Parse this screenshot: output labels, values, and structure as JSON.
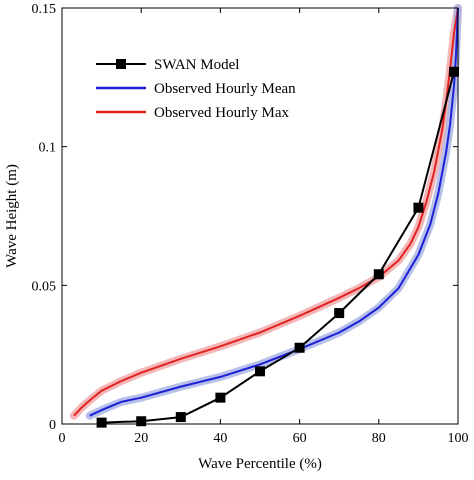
{
  "chart_data": {
    "type": "line",
    "title": "",
    "xlabel": "Wave Percentile (%)",
    "ylabel": "Wave Height (m)",
    "xlim": [
      0,
      100
    ],
    "ylim": [
      0,
      0.15
    ],
    "x_ticks": [
      0,
      20,
      40,
      60,
      80,
      100
    ],
    "y_ticks": [
      0,
      0.05,
      0.1,
      0.15
    ],
    "x_tick_labels": [
      "0",
      "20",
      "40",
      "60",
      "80",
      "100"
    ],
    "y_tick_labels": [
      "0",
      "0.05",
      "0.1",
      "0.15"
    ],
    "grid": false,
    "legend_position": "upper-left",
    "series": [
      {
        "name": "SWAN Model",
        "color": "#000000",
        "marker": "square",
        "x": [
          10,
          20,
          30,
          40,
          50,
          60,
          70,
          80,
          90,
          99
        ],
        "y": [
          0.0005,
          0.001,
          0.0025,
          0.0095,
          0.019,
          0.0275,
          0.04,
          0.054,
          0.078,
          0.127
        ]
      },
      {
        "name": "Observed Hourly Mean",
        "color": "#1f1fd6",
        "band_color": "#a9b5e8",
        "x": [
          7,
          10,
          15,
          20,
          30,
          40,
          50,
          60,
          70,
          75,
          80,
          85,
          90,
          93,
          95,
          97,
          98,
          99,
          99.5,
          100
        ],
        "y": [
          0.003,
          0.005,
          0.008,
          0.0095,
          0.0135,
          0.017,
          0.0215,
          0.027,
          0.033,
          0.037,
          0.042,
          0.049,
          0.061,
          0.072,
          0.083,
          0.098,
          0.108,
          0.122,
          0.133,
          0.15
        ]
      },
      {
        "name": "Observed Hourly Max",
        "color": "#e32222",
        "band_color": "#f2aaaa",
        "x": [
          3,
          5,
          7,
          10,
          15,
          20,
          30,
          40,
          50,
          60,
          70,
          75,
          80,
          85,
          88,
          90,
          92,
          94,
          96,
          97,
          98,
          99,
          100
        ],
        "y": [
          0.003,
          0.006,
          0.0085,
          0.012,
          0.0155,
          0.0185,
          0.0235,
          0.028,
          0.033,
          0.039,
          0.0455,
          0.049,
          0.053,
          0.059,
          0.065,
          0.071,
          0.08,
          0.091,
          0.106,
          0.116,
          0.128,
          0.141,
          0.15
        ]
      }
    ]
  }
}
